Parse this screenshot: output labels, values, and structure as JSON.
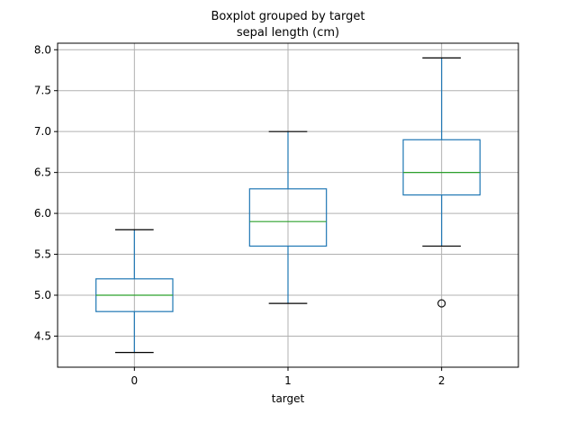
{
  "chart_data": {
    "type": "box",
    "suptitle": "Boxplot grouped by target",
    "title": "sepal length (cm)",
    "xlabel": "target",
    "ylabel": "",
    "ylim": [
      4.12,
      8.08
    ],
    "yticks": [
      4.5,
      5.0,
      5.5,
      6.0,
      6.5,
      7.0,
      7.5,
      8.0
    ],
    "ytick_labels": [
      "4.5",
      "5.0",
      "5.5",
      "6.0",
      "6.5",
      "7.0",
      "7.5",
      "8.0"
    ],
    "grid": true,
    "categories": [
      "0",
      "1",
      "2"
    ],
    "boxes": [
      {
        "label": "0",
        "whisker_low": 4.3,
        "q1": 4.8,
        "median": 5.0,
        "q3": 5.2,
        "whisker_high": 5.8,
        "outliers": []
      },
      {
        "label": "1",
        "whisker_low": 4.9,
        "q1": 5.6,
        "median": 5.9,
        "q3": 6.3,
        "whisker_high": 7.0,
        "outliers": []
      },
      {
        "label": "2",
        "whisker_low": 5.6,
        "q1": 6.225,
        "median": 6.5,
        "q3": 6.9,
        "whisker_high": 7.9,
        "outliers": [
          4.9
        ]
      }
    ],
    "colors": {
      "box": "#1f77b4",
      "median": "#2ca02c",
      "whisker_cap": "#000000",
      "grid": "#b0b0b0"
    }
  }
}
